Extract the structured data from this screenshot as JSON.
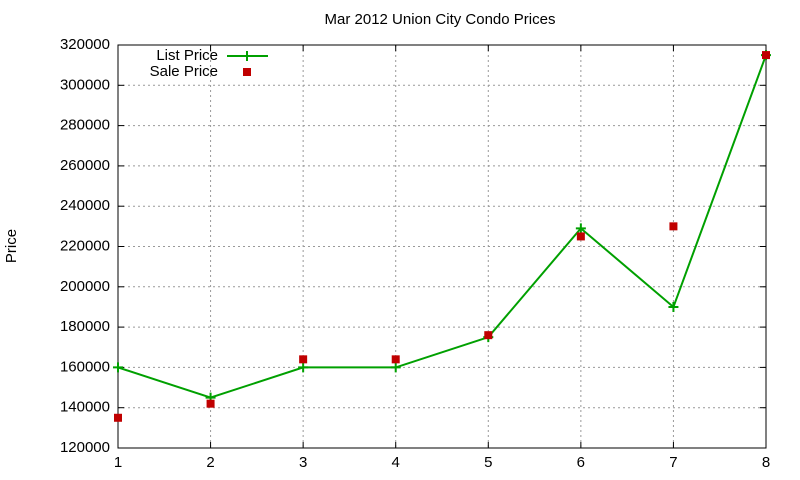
{
  "chart_data": {
    "type": "line",
    "title": "Mar 2012 Union City Condo Prices",
    "ylabel": "Price",
    "x": [
      1,
      2,
      3,
      4,
      5,
      6,
      7,
      8
    ],
    "series": [
      {
        "name": "List Price",
        "color": "#00a000",
        "mode": "lines+markers",
        "marker": "plus",
        "values": [
          160000,
          145000,
          160000,
          160000,
          175000,
          229000,
          190000,
          315000
        ]
      },
      {
        "name": "Sale Price",
        "color": "#c00000",
        "mode": "markers",
        "marker": "square",
        "values": [
          135000,
          142000,
          164000,
          164000,
          176000,
          225000,
          230000,
          315000
        ]
      }
    ],
    "xlim": [
      1,
      8
    ],
    "xticks": [
      1,
      2,
      3,
      4,
      5,
      6,
      7,
      8
    ],
    "ylim": [
      120000,
      320000
    ],
    "yticks": [
      120000,
      140000,
      160000,
      180000,
      200000,
      220000,
      240000,
      260000,
      280000,
      300000,
      320000
    ],
    "grid": true,
    "legend": "top-left"
  }
}
